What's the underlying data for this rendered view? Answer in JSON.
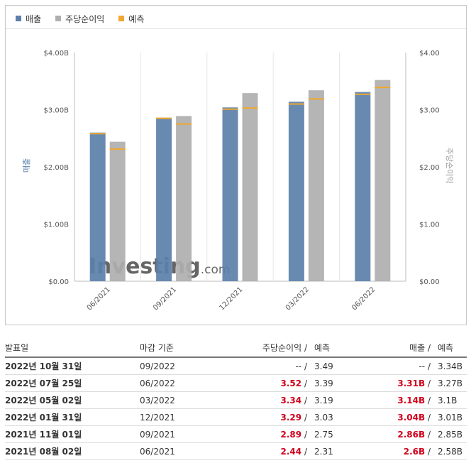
{
  "legend": {
    "revenue_label": "매출",
    "eps_label": "주당순이익",
    "forecast_label": "예측"
  },
  "colors": {
    "revenue": "#5b80aa",
    "eps": "#afafaf",
    "forecast": "#f0a830",
    "red": "#d0021b"
  },
  "watermark": {
    "main": "Investing",
    "suffix": ".com"
  },
  "chart_data": {
    "type": "bar",
    "categories": [
      "06/2021",
      "09/2021",
      "12/2021",
      "03/2022",
      "06/2022"
    ],
    "series": [
      {
        "name": "매출",
        "axis": "left",
        "values": [
          2.6,
          2.86,
          3.04,
          3.14,
          3.31
        ],
        "unit": "B"
      },
      {
        "name": "주당순이익",
        "axis": "right",
        "values": [
          2.44,
          2.89,
          3.29,
          3.34,
          3.52
        ]
      }
    ],
    "forecast": {
      "revenue": [
        2.58,
        2.85,
        3.01,
        3.1,
        3.27
      ],
      "eps": [
        2.31,
        2.75,
        3.03,
        3.19,
        3.39
      ]
    },
    "ylabel_left": "매출",
    "ylabel_right": "주당순이익",
    "ylim": [
      0,
      4
    ],
    "yticks_left": [
      "$0.00",
      "$1.00B",
      "$2.00B",
      "$3.00B",
      "$4.00B"
    ],
    "yticks_right": [
      "$0.00",
      "$1.00",
      "$2.00",
      "$3.00",
      "$4.00"
    ],
    "grid": "vertical"
  },
  "table": {
    "headers": {
      "date": "발표일",
      "period": "마감 기준",
      "eps": "주당순이익",
      "eps_forecast": "예측",
      "revenue": "매출",
      "revenue_forecast": "예측",
      "slash": "/"
    },
    "rows": [
      {
        "date": "2022년 10월 31일",
        "period": "09/2022",
        "eps": "--",
        "eps_forecast": "3.49",
        "revenue": "--",
        "revenue_forecast": "3.34B",
        "highlight": false
      },
      {
        "date": "2022년 07월 25일",
        "period": "06/2022",
        "eps": "3.52",
        "eps_forecast": "3.39",
        "revenue": "3.31B",
        "revenue_forecast": "3.27B",
        "highlight": true
      },
      {
        "date": "2022년 05월 02일",
        "period": "03/2022",
        "eps": "3.34",
        "eps_forecast": "3.19",
        "revenue": "3.14B",
        "revenue_forecast": "3.1B",
        "highlight": true
      },
      {
        "date": "2022년 01월 31일",
        "period": "12/2021",
        "eps": "3.29",
        "eps_forecast": "3.03",
        "revenue": "3.04B",
        "revenue_forecast": "3.01B",
        "highlight": true
      },
      {
        "date": "2021년 11월 01일",
        "period": "09/2021",
        "eps": "2.89",
        "eps_forecast": "2.75",
        "revenue": "2.86B",
        "revenue_forecast": "2.85B",
        "highlight": true
      },
      {
        "date": "2021년 08월 02일",
        "period": "06/2021",
        "eps": "2.44",
        "eps_forecast": "2.31",
        "revenue": "2.6B",
        "revenue_forecast": "2.58B",
        "highlight": true
      }
    ]
  }
}
